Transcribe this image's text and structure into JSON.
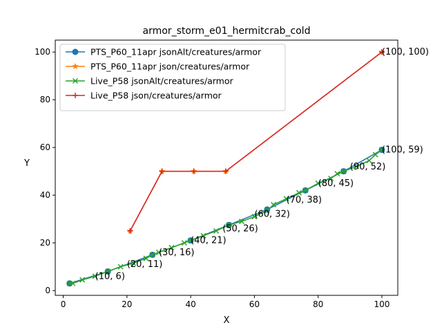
{
  "chart_data": {
    "type": "line",
    "title": "armor_storm_e01_hermitcrab_cold",
    "xlabel": "X",
    "ylabel": "Y",
    "xlim": [
      -2.5,
      105
    ],
    "ylim": [
      -2,
      105
    ],
    "xticks": [
      0,
      20,
      40,
      60,
      80,
      100
    ],
    "yticks": [
      0,
      20,
      40,
      60,
      80,
      100
    ],
    "xtick_labels": [
      "0",
      "20",
      "40",
      "60",
      "80",
      "100"
    ],
    "ytick_labels": [
      "0",
      "20",
      "40",
      "60",
      "80",
      "100"
    ],
    "grid": false,
    "legend_position": "top-left",
    "series": [
      {
        "name": "PTS_P60_11apr jsonAlt/creatures/armor",
        "color": "#1f77b4",
        "marker": "circle",
        "x": [
          2,
          14,
          28,
          40,
          52,
          64,
          76,
          88,
          100
        ],
        "y": [
          3,
          8,
          15,
          21,
          27.5,
          34,
          42,
          50,
          59
        ]
      },
      {
        "name": "PTS_P60_11apr json/creatures/armor",
        "color": "#ff7f0e",
        "marker": "star",
        "x": [
          21,
          31,
          41,
          51,
          100
        ],
        "y": [
          25,
          50,
          50,
          50,
          100
        ]
      },
      {
        "name": "Live_P58 jsonAlt/creatures/armor",
        "color": "#2ca02c",
        "marker": "x",
        "x": [
          2,
          3,
          6,
          10,
          14,
          18,
          22,
          26,
          28,
          30,
          34,
          38,
          40,
          44,
          48,
          52,
          56,
          60,
          64,
          66,
          70,
          74,
          76,
          80,
          84,
          86,
          88,
          92,
          96,
          98,
          100
        ],
        "y": [
          3,
          3,
          4.5,
          6,
          8,
          10,
          11.5,
          13.5,
          15,
          16,
          18,
          20,
          21,
          23,
          25,
          27.5,
          29,
          31,
          33.5,
          36,
          38.5,
          41,
          42,
          45,
          47,
          49,
          50,
          52,
          54.5,
          57,
          59
        ]
      },
      {
        "name": "Live_P58 json/creatures/armor",
        "color": "#d62728",
        "marker": "plus",
        "x": [
          21,
          31,
          41,
          51,
          100
        ],
        "y": [
          25,
          50,
          50,
          50,
          100
        ]
      }
    ],
    "annotations": [
      {
        "text": "(10, 6)",
        "x": 10,
        "y": 6
      },
      {
        "text": "(20, 11)",
        "x": 20,
        "y": 11
      },
      {
        "text": "(30, 16)",
        "x": 30,
        "y": 16
      },
      {
        "text": "(40, 21)",
        "x": 40,
        "y": 21
      },
      {
        "text": "(50, 26)",
        "x": 50,
        "y": 26
      },
      {
        "text": "(60, 32)",
        "x": 60,
        "y": 32
      },
      {
        "text": "(70, 38)",
        "x": 70,
        "y": 38
      },
      {
        "text": "(80, 45)",
        "x": 80,
        "y": 45
      },
      {
        "text": "(90, 52)",
        "x": 90,
        "y": 52
      },
      {
        "text": "(100, 59)",
        "x": 100,
        "y": 59
      },
      {
        "text": "(100, 100)",
        "x": 100,
        "y": 100
      }
    ]
  }
}
